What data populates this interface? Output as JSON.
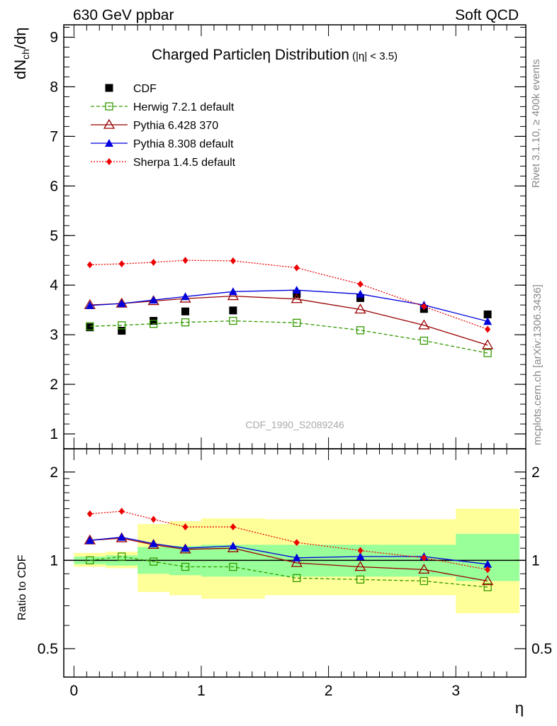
{
  "header": {
    "left": "630 GeV ppbar",
    "right": "Soft QCD"
  },
  "side_labels": {
    "rivet": "Rivet 3.1.10, ≥ 400k events",
    "mcplots": "mcplots.cern.ch [arXiv:1306.3436]"
  },
  "colors": {
    "CDF": "#000000",
    "herwig": "#339900",
    "pythia6": "#990000",
    "pythia8": "#0000dd",
    "sherpa": "#ee0000",
    "band_inner": "#99ff99",
    "band_outer": "#ffff99"
  },
  "chart_data": [
    {
      "type": "line",
      "panel": "main",
      "title": "Charged Particleη Distribution",
      "title_suffix": "(|η| < 3.5)",
      "watermark": "CDF_1990_S2089246",
      "xlabel": "η",
      "ylabel": "dN_ch/dη",
      "ylabel_main": "dN",
      "ylabel_sub": "ch",
      "ylabel_tail": "/dη",
      "xlim": [
        -0.08,
        3.55
      ],
      "ylim": [
        0.7,
        9.25
      ],
      "yticks": [
        1,
        2,
        3,
        4,
        5,
        6,
        7,
        8,
        9
      ],
      "yticklabels": [
        "1",
        "2",
        "3",
        "4",
        "5",
        "6",
        "7",
        "8",
        "9"
      ],
      "x": [
        0.125,
        0.375,
        0.625,
        0.875,
        1.25,
        1.75,
        2.25,
        2.75,
        3.25
      ],
      "series": [
        {
          "name": "CDF",
          "key": "CDF",
          "values": [
            3.15,
            3.08,
            3.28,
            3.47,
            3.49,
            3.82,
            3.74,
            3.52,
            3.41
          ]
        },
        {
          "name": "Herwig 7.2.1 default",
          "key": "herwig",
          "values": [
            3.17,
            3.19,
            3.22,
            3.25,
            3.28,
            3.24,
            3.09,
            2.88,
            2.63
          ]
        },
        {
          "name": "Pythia 6.428 370",
          "key": "pythia6",
          "values": [
            3.6,
            3.63,
            3.68,
            3.73,
            3.78,
            3.72,
            3.51,
            3.19,
            2.79
          ]
        },
        {
          "name": "Pythia 8.308 default",
          "key": "pythia8",
          "values": [
            3.59,
            3.63,
            3.7,
            3.77,
            3.87,
            3.9,
            3.82,
            3.6,
            3.27
          ]
        },
        {
          "name": "Sherpa 1.4.5 default",
          "key": "sherpa",
          "values": [
            4.41,
            4.43,
            4.46,
            4.5,
            4.49,
            4.35,
            4.02,
            3.57,
            3.11
          ]
        }
      ]
    },
    {
      "type": "line",
      "panel": "ratio",
      "ylabel": "Ratio to CDF",
      "xlabel": "η",
      "xlim": [
        -0.08,
        3.55
      ],
      "ylim": [
        0.4,
        2.4
      ],
      "ylog": true,
      "yticks": [
        0.5,
        1,
        2
      ],
      "yticklabels": [
        "0.5",
        "1",
        "2"
      ],
      "xticks": [
        0,
        1,
        2,
        3
      ],
      "xticklabels": [
        "0",
        "1",
        "2",
        "3"
      ],
      "reference": 1,
      "bins": [
        [
          0,
          0.25
        ],
        [
          0.25,
          0.5
        ],
        [
          0.5,
          0.75
        ],
        [
          0.75,
          1.0
        ],
        [
          1.0,
          1.5
        ],
        [
          1.5,
          2.0
        ],
        [
          2.0,
          2.5
        ],
        [
          2.5,
          3.0
        ],
        [
          3.0,
          3.5
        ]
      ],
      "band_inner": [
        [
          0.97,
          1.03
        ],
        [
          0.96,
          1.04
        ],
        [
          0.9,
          1.11
        ],
        [
          0.89,
          1.12
        ],
        [
          0.88,
          1.13
        ],
        [
          0.88,
          1.13
        ],
        [
          0.88,
          1.13
        ],
        [
          0.88,
          1.13
        ],
        [
          0.85,
          1.23
        ]
      ],
      "band_outer": [
        [
          0.95,
          1.06
        ],
        [
          0.94,
          1.07
        ],
        [
          0.78,
          1.33
        ],
        [
          0.76,
          1.36
        ],
        [
          0.74,
          1.39
        ],
        [
          0.76,
          1.38
        ],
        [
          0.76,
          1.38
        ],
        [
          0.76,
          1.38
        ],
        [
          0.66,
          1.5
        ]
      ],
      "x": [
        0.125,
        0.375,
        0.625,
        0.875,
        1.25,
        1.75,
        2.25,
        2.75,
        3.25
      ],
      "series": [
        {
          "name": "Herwig 7.2.1 default",
          "key": "herwig",
          "values": [
            1.0,
            1.03,
            0.99,
            0.95,
            0.95,
            0.87,
            0.86,
            0.85,
            0.81
          ]
        },
        {
          "name": "Pythia 6.428 370",
          "key": "pythia6",
          "values": [
            1.17,
            1.19,
            1.13,
            1.09,
            1.1,
            0.98,
            0.95,
            0.93,
            0.85
          ]
        },
        {
          "name": "Pythia 8.308 default",
          "key": "pythia8",
          "values": [
            1.17,
            1.2,
            1.14,
            1.1,
            1.12,
            1.02,
            1.03,
            1.03,
            0.97
          ]
        },
        {
          "name": "Sherpa 1.4.5 default",
          "key": "sherpa",
          "values": [
            1.44,
            1.47,
            1.38,
            1.3,
            1.3,
            1.15,
            1.08,
            1.02,
            0.93
          ]
        }
      ]
    }
  ]
}
